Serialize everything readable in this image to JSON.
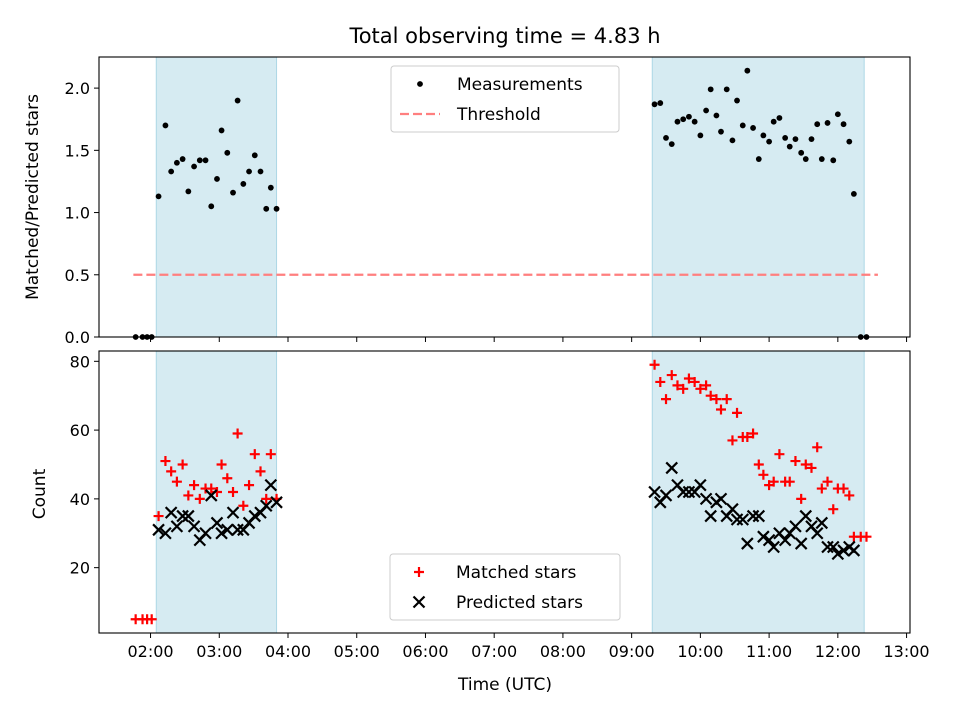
{
  "title": "Total observing time = 4.83 h",
  "xlabel": "Time (UTC)",
  "x_ticks": [
    "02:00",
    "03:00",
    "04:00",
    "05:00",
    "06:00",
    "07:00",
    "08:00",
    "09:00",
    "10:00",
    "11:00",
    "12:00",
    "13:00"
  ],
  "colors": {
    "measurements": "#000000",
    "threshold": "#ff7f7f",
    "matched": "#ff0000",
    "predicted": "#000000",
    "span": "#add8e6"
  },
  "chart_data": [
    {
      "type": "scatter",
      "ylabel": "Matched/Predicted stars",
      "xlim": [
        "01:15",
        "13:03"
      ],
      "ylim": [
        0,
        2.25
      ],
      "y_ticks": [
        "0.0",
        "0.5",
        "1.0",
        "1.5",
        "2.0"
      ],
      "legend": {
        "position": "top-center",
        "entries": [
          "Measurements",
          "Threshold"
        ]
      },
      "shaded_intervals": [
        [
          "02:05",
          "03:50"
        ],
        [
          "09:18",
          "12:23"
        ]
      ],
      "threshold": {
        "name": "Threshold",
        "value": 0.5,
        "x_range": [
          "01:45",
          "12:35"
        ],
        "style": "dashed"
      },
      "series": [
        {
          "name": "Measurements",
          "marker": "dot",
          "points": [
            [
              "01:47",
              0.0
            ],
            [
              "01:53",
              0.0
            ],
            [
              "01:57",
              0.0
            ],
            [
              "02:01",
              0.0
            ],
            [
              "02:07",
              1.13
            ],
            [
              "02:13",
              1.7
            ],
            [
              "02:18",
              1.33
            ],
            [
              "02:23",
              1.4
            ],
            [
              "02:28",
              1.43
            ],
            [
              "02:33",
              1.17
            ],
            [
              "02:38",
              1.37
            ],
            [
              "02:43",
              1.42
            ],
            [
              "02:48",
              1.42
            ],
            [
              "02:53",
              1.05
            ],
            [
              "02:58",
              1.27
            ],
            [
              "03:02",
              1.66
            ],
            [
              "03:07",
              1.48
            ],
            [
              "03:12",
              1.16
            ],
            [
              "03:16",
              1.9
            ],
            [
              "03:21",
              1.23
            ],
            [
              "03:26",
              1.33
            ],
            [
              "03:31",
              1.46
            ],
            [
              "03:36",
              1.33
            ],
            [
              "03:41",
              1.03
            ],
            [
              "03:45",
              1.2
            ],
            [
              "03:50",
              1.03
            ],
            [
              "09:20",
              1.87
            ],
            [
              "09:25",
              1.88
            ],
            [
              "09:30",
              1.6
            ],
            [
              "09:35",
              1.55
            ],
            [
              "09:40",
              1.73
            ],
            [
              "09:45",
              1.75
            ],
            [
              "09:50",
              1.77
            ],
            [
              "09:55",
              1.73
            ],
            [
              "10:00",
              1.62
            ],
            [
              "10:05",
              1.82
            ],
            [
              "10:09",
              1.99
            ],
            [
              "10:14",
              1.78
            ],
            [
              "10:18",
              1.65
            ],
            [
              "10:23",
              1.99
            ],
            [
              "10:28",
              1.58
            ],
            [
              "10:32",
              1.9
            ],
            [
              "10:37",
              1.7
            ],
            [
              "10:41",
              2.14
            ],
            [
              "10:46",
              1.68
            ],
            [
              "10:51",
              1.43
            ],
            [
              "10:55",
              1.62
            ],
            [
              "11:00",
              1.57
            ],
            [
              "11:04",
              1.73
            ],
            [
              "11:09",
              1.76
            ],
            [
              "11:14",
              1.6
            ],
            [
              "11:18",
              1.53
            ],
            [
              "11:23",
              1.59
            ],
            [
              "11:28",
              1.48
            ],
            [
              "11:32",
              1.43
            ],
            [
              "11:37",
              1.59
            ],
            [
              "11:42",
              1.71
            ],
            [
              "11:46",
              1.43
            ],
            [
              "11:51",
              1.72
            ],
            [
              "11:56",
              1.42
            ],
            [
              "12:00",
              1.79
            ],
            [
              "12:05",
              1.71
            ],
            [
              "12:10",
              1.57
            ],
            [
              "12:14",
              1.15
            ],
            [
              "12:20",
              0.0
            ],
            [
              "12:25",
              0.0
            ]
          ]
        }
      ]
    },
    {
      "type": "scatter",
      "ylabel": "Count",
      "xlim": [
        "01:15",
        "13:03"
      ],
      "ylim": [
        1,
        83
      ],
      "y_ticks": [
        "20",
        "40",
        "60",
        "80"
      ],
      "legend": {
        "position": "bottom-center",
        "entries": [
          "Matched stars",
          "Predicted stars"
        ]
      },
      "shaded_intervals": [
        [
          "02:05",
          "03:50"
        ],
        [
          "09:18",
          "12:23"
        ]
      ],
      "series": [
        {
          "name": "Matched stars",
          "marker": "plus",
          "points": [
            [
              "01:47",
              5
            ],
            [
              "01:53",
              5
            ],
            [
              "01:57",
              5
            ],
            [
              "02:01",
              5
            ],
            [
              "02:07",
              35
            ],
            [
              "02:13",
              51
            ],
            [
              "02:18",
              48
            ],
            [
              "02:23",
              45
            ],
            [
              "02:28",
              50
            ],
            [
              "02:33",
              41
            ],
            [
              "02:38",
              44
            ],
            [
              "02:43",
              40
            ],
            [
              "02:48",
              43
            ],
            [
              "02:53",
              43
            ],
            [
              "02:58",
              42
            ],
            [
              "03:02",
              50
            ],
            [
              "03:07",
              46
            ],
            [
              "03:12",
              42
            ],
            [
              "03:16",
              59
            ],
            [
              "03:21",
              38
            ],
            [
              "03:26",
              44
            ],
            [
              "03:31",
              53
            ],
            [
              "03:36",
              48
            ],
            [
              "03:41",
              40
            ],
            [
              "03:45",
              53
            ],
            [
              "03:50",
              40
            ],
            [
              "09:20",
              79
            ],
            [
              "09:25",
              74
            ],
            [
              "09:30",
              69
            ],
            [
              "09:35",
              76
            ],
            [
              "09:40",
              73
            ],
            [
              "09:45",
              72
            ],
            [
              "09:50",
              75
            ],
            [
              "09:55",
              74
            ],
            [
              "10:00",
              72
            ],
            [
              "10:05",
              73
            ],
            [
              "10:09",
              70
            ],
            [
              "10:14",
              69
            ],
            [
              "10:18",
              66
            ],
            [
              "10:23",
              69
            ],
            [
              "10:28",
              57
            ],
            [
              "10:32",
              65
            ],
            [
              "10:37",
              58
            ],
            [
              "10:41",
              58
            ],
            [
              "10:46",
              59
            ],
            [
              "10:51",
              50
            ],
            [
              "10:55",
              47
            ],
            [
              "11:00",
              44
            ],
            [
              "11:04",
              45
            ],
            [
              "11:09",
              53
            ],
            [
              "11:14",
              45
            ],
            [
              "11:18",
              45
            ],
            [
              "11:23",
              51
            ],
            [
              "11:28",
              40
            ],
            [
              "11:32",
              50
            ],
            [
              "11:37",
              49
            ],
            [
              "11:42",
              55
            ],
            [
              "11:46",
              43
            ],
            [
              "11:51",
              45
            ],
            [
              "11:56",
              37
            ],
            [
              "12:00",
              43
            ],
            [
              "12:05",
              43
            ],
            [
              "12:10",
              41
            ],
            [
              "12:14",
              29
            ],
            [
              "12:20",
              29
            ],
            [
              "12:25",
              29
            ]
          ]
        },
        {
          "name": "Predicted stars",
          "marker": "x",
          "points": [
            [
              "02:07",
              31
            ],
            [
              "02:13",
              30
            ],
            [
              "02:18",
              36
            ],
            [
              "02:23",
              32
            ],
            [
              "02:28",
              35
            ],
            [
              "02:33",
              35
            ],
            [
              "02:38",
              32
            ],
            [
              "02:43",
              28
            ],
            [
              "02:48",
              30
            ],
            [
              "02:53",
              41
            ],
            [
              "02:58",
              33
            ],
            [
              "03:02",
              30
            ],
            [
              "03:07",
              31
            ],
            [
              "03:12",
              36
            ],
            [
              "03:16",
              31
            ],
            [
              "03:21",
              31
            ],
            [
              "03:26",
              33
            ],
            [
              "03:31",
              35
            ],
            [
              "03:36",
              36
            ],
            [
              "03:41",
              38
            ],
            [
              "03:45",
              44
            ],
            [
              "03:50",
              39
            ],
            [
              "09:20",
              42
            ],
            [
              "09:25",
              39
            ],
            [
              "09:30",
              41
            ],
            [
              "09:35",
              49
            ],
            [
              "09:40",
              44
            ],
            [
              "09:45",
              42
            ],
            [
              "09:50",
              42
            ],
            [
              "09:55",
              42
            ],
            [
              "10:00",
              44
            ],
            [
              "10:05",
              40
            ],
            [
              "10:09",
              35
            ],
            [
              "10:14",
              39
            ],
            [
              "10:18",
              40
            ],
            [
              "10:23",
              35
            ],
            [
              "10:28",
              37
            ],
            [
              "10:32",
              34
            ],
            [
              "10:37",
              34
            ],
            [
              "10:41",
              27
            ],
            [
              "10:46",
              35
            ],
            [
              "10:51",
              35
            ],
            [
              "10:55",
              29
            ],
            [
              "11:00",
              28
            ],
            [
              "11:04",
              26
            ],
            [
              "11:09",
              30
            ],
            [
              "11:14",
              28
            ],
            [
              "11:18",
              30
            ],
            [
              "11:23",
              32
            ],
            [
              "11:28",
              27
            ],
            [
              "11:32",
              35
            ],
            [
              "11:37",
              32
            ],
            [
              "11:42",
              30
            ],
            [
              "11:46",
              33
            ],
            [
              "11:51",
              26
            ],
            [
              "11:56",
              26
            ],
            [
              "12:00",
              24
            ],
            [
              "12:05",
              25
            ],
            [
              "12:10",
              26
            ],
            [
              "12:14",
              25
            ]
          ]
        }
      ]
    }
  ]
}
